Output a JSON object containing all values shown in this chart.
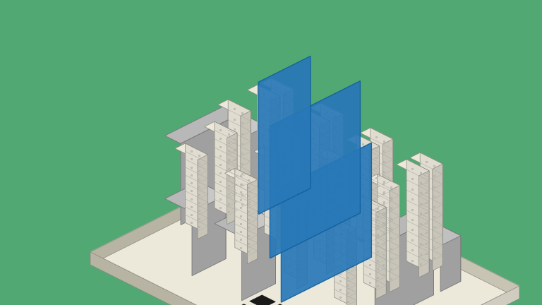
{
  "bg_color": "#52a872",
  "floor_top": "#ede9da",
  "floor_edge_front": "#c8c4b4",
  "floor_edge_left": "#b8b4a4",
  "floor_edge_right": "#d0ccc0",
  "rack_top": "#ede9da",
  "rack_front": "#e0ddd0",
  "rack_side": "#c8c5b8",
  "rack_shelf_color": "#b8b5a8",
  "rack_dot_color": "#d0cdc0",
  "rack_inner_color": "#c0bdb0",
  "gray_top": "#b8b8b8",
  "gray_front": "#c8c8c8",
  "gray_side": "#a0a0a0",
  "blue_color": "#2878b8",
  "blue_alpha": 0.92,
  "black_tile": "#1a1a1a",
  "outline_color": "#888880",
  "fine_line": "#aaaaaa"
}
